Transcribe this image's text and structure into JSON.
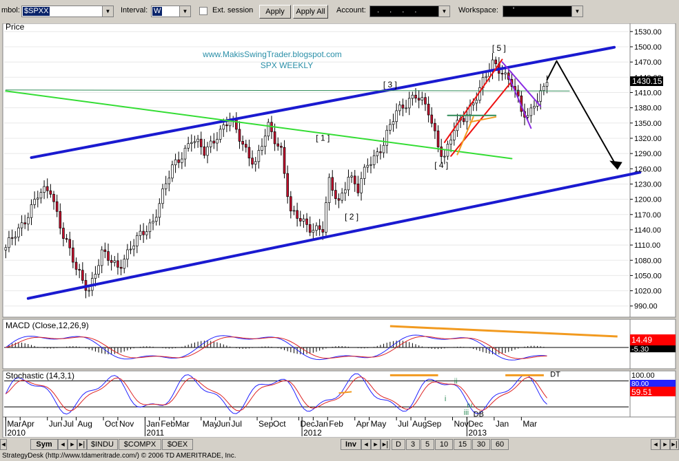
{
  "toolbar": {
    "symbol_label": "mbol:",
    "symbol_value": "$SPXX",
    "interval_label": "Interval:",
    "interval_value": "W",
    "ext_session_label": "Ext. session",
    "apply_label": "Apply",
    "apply_all_label": "Apply All",
    "account_label": "Account:",
    "account_value": ". . . .",
    "workspace_label": "Workspace:",
    "workspace_value": "'"
  },
  "chart_data": {
    "type": "candlestick",
    "panel_label": "Price",
    "watermark": "www.MakisSwingTrader.blogspot.com",
    "subtitle": "SPX WEEKLY",
    "last_price": "1430.15",
    "ylim": [
      968,
      1546
    ],
    "yticks": [
      "1530.00",
      "1500.00",
      "1470.00",
      "1440.00",
      "1410.00",
      "1380.00",
      "1350.00",
      "1320.00",
      "1290.00",
      "1260.00",
      "1230.00",
      "1200.00",
      "1170.00",
      "1140.00",
      "1110.00",
      "1080.00",
      "1050.00",
      "1020.00",
      "990.00"
    ],
    "anchors": [
      {
        "week": 0,
        "close": 1100
      },
      {
        "week": 10,
        "close": 1205
      },
      {
        "week": 14,
        "close": 1220
      },
      {
        "week": 18,
        "close": 1130
      },
      {
        "week": 22,
        "close": 1060
      },
      {
        "week": 26,
        "close": 1025
      },
      {
        "week": 30,
        "close": 1090
      },
      {
        "week": 35,
        "close": 1070
      },
      {
        "week": 40,
        "close": 1110
      },
      {
        "week": 46,
        "close": 1160
      },
      {
        "week": 52,
        "close": 1260
      },
      {
        "week": 58,
        "close": 1320
      },
      {
        "week": 62,
        "close": 1290
      },
      {
        "week": 66,
        "close": 1330
      },
      {
        "week": 70,
        "close": 1355
      },
      {
        "week": 74,
        "close": 1310
      },
      {
        "week": 78,
        "close": 1270
      },
      {
        "week": 82,
        "close": 1340
      },
      {
        "week": 86,
        "close": 1300
      },
      {
        "week": 89,
        "close": 1170
      },
      {
        "week": 94,
        "close": 1150
      },
      {
        "week": 99,
        "close": 1140
      },
      {
        "week": 101,
        "close": 1230
      },
      {
        "week": 104,
        "close": 1195
      },
      {
        "week": 107,
        "close": 1250
      },
      {
        "week": 110,
        "close": 1215
      },
      {
        "week": 113,
        "close": 1270
      },
      {
        "week": 118,
        "close": 1310
      },
      {
        "week": 122,
        "close": 1370
      },
      {
        "week": 126,
        "close": 1400
      },
      {
        "week": 128,
        "close": 1405
      },
      {
        "week": 132,
        "close": 1370
      },
      {
        "week": 135,
        "close": 1310
      },
      {
        "week": 137,
        "close": 1285
      },
      {
        "week": 140,
        "close": 1335
      },
      {
        "week": 143,
        "close": 1360
      },
      {
        "week": 146,
        "close": 1395
      },
      {
        "week": 150,
        "close": 1440
      },
      {
        "week": 152,
        "close": 1465
      },
      {
        "week": 155,
        "close": 1455
      },
      {
        "week": 158,
        "close": 1430
      },
      {
        "week": 161,
        "close": 1370
      },
      {
        "week": 163,
        "close": 1360
      },
      {
        "week": 165,
        "close": 1395
      },
      {
        "week": 167,
        "close": 1410
      },
      {
        "week": 169,
        "close": 1430
      }
    ],
    "wave_labels": [
      {
        "text": "[ 1 ]",
        "week": 99,
        "price": 1315
      },
      {
        "text": "[ 2 ]",
        "week": 108,
        "price": 1160
      },
      {
        "text": "[ 3 ]",
        "week": 120,
        "price": 1420
      },
      {
        "text": "[ 4 ]",
        "week": 136,
        "price": 1262
      },
      {
        "text": "[ 5 ]",
        "week": 154,
        "price": 1492
      }
    ],
    "x_labels": [
      "Mar",
      "Apr",
      "Jun",
      "Jul",
      "Aug",
      "Oct",
      "Nov",
      "Jan",
      "Feb",
      "Mar",
      "May",
      "Jun",
      "Jul",
      "Sep",
      "Oct",
      "Dec",
      "Jan",
      "Feb",
      "Apr",
      "May",
      "Jul",
      "Aug",
      "Sep",
      "Nov",
      "Dec",
      "Jan",
      "Mar"
    ],
    "x_years": [
      "2010",
      "2011",
      "2012",
      "2013"
    ],
    "macd": {
      "label": "MACD (Close,12,26,9)",
      "value_label": "14.49",
      "signal_label": "-5.30"
    },
    "stochastic": {
      "label": "Stochastic (14,3,1)",
      "ytick_top": "100.00",
      "value_label": "59.51",
      "value_label2": "80.00",
      "annotations": [
        "DT",
        "DB",
        "i",
        "ii",
        "iii",
        "iv"
      ]
    }
  },
  "bottom": {
    "sym_label": "Sym",
    "tabs": [
      "$INDU",
      "$COMPX",
      "$OEX"
    ],
    "inv_label": "Inv",
    "intervals": [
      "D",
      "3",
      "5",
      "10",
      "15",
      "30",
      "60"
    ]
  },
  "status": "StrategyDesk (http://www.tdameritrade.com/) © 2006 TD AMERITRADE, Inc.",
  "colors": {
    "channel": "#1a1ad0",
    "green_line": "#33dd33",
    "red_channel": "#ee1111",
    "purple_channel": "#8a2be2",
    "orange": "#f29a1f",
    "arrow": "#000000",
    "macd_line": "#2020ff",
    "signal_line": "#dd2222",
    "last_price_bg": "#000000",
    "macd_badge_bg": "#ff0000"
  }
}
